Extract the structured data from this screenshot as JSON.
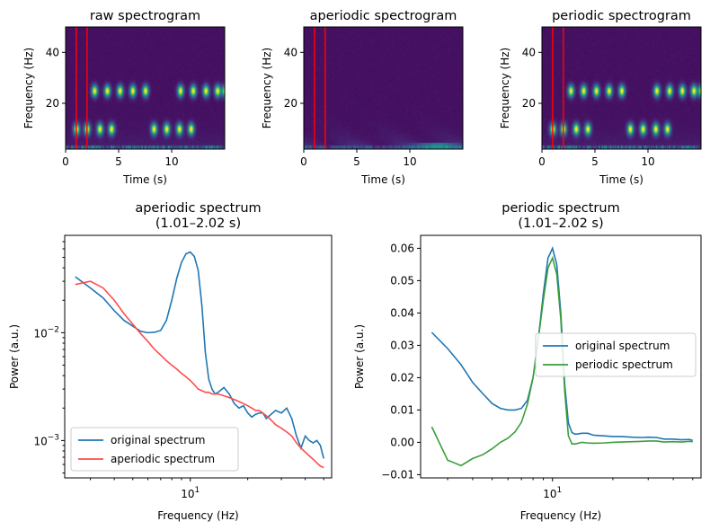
{
  "chart_data": [
    {
      "type": "heatmap",
      "title": "raw spectrogram",
      "xlabel": "Time (s)",
      "ylabel": "Frequency (Hz)",
      "xlim": [
        0,
        15
      ],
      "ylim": [
        2,
        50
      ],
      "xticks": [
        0,
        5,
        10
      ],
      "yticks": [
        20,
        40
      ],
      "colormap": "viridis",
      "vlines": [
        1.01,
        2.02
      ],
      "vline_color": "#ff0000",
      "blobs": [
        {
          "t": 1.0,
          "f": 10
        },
        {
          "t": 2.0,
          "f": 10
        },
        {
          "t": 3.2,
          "f": 10
        },
        {
          "t": 4.3,
          "f": 10
        },
        {
          "t": 2.7,
          "f": 25
        },
        {
          "t": 3.9,
          "f": 25
        },
        {
          "t": 5.1,
          "f": 25
        },
        {
          "t": 6.3,
          "f": 25
        },
        {
          "t": 7.5,
          "f": 25
        },
        {
          "t": 8.3,
          "f": 10
        },
        {
          "t": 9.5,
          "f": 10
        },
        {
          "t": 10.7,
          "f": 10
        },
        {
          "t": 11.8,
          "f": 10
        },
        {
          "t": 10.8,
          "f": 25
        },
        {
          "t": 12.0,
          "f": 25
        },
        {
          "t": 13.2,
          "f": 25
        },
        {
          "t": 14.3,
          "f": 25
        },
        {
          "t": 15.0,
          "f": 25
        }
      ]
    },
    {
      "type": "heatmap",
      "title": "aperiodic spectrogram",
      "xlabel": "Time (s)",
      "ylabel": "Frequency (Hz)",
      "xlim": [
        0,
        15
      ],
      "ylim": [
        2,
        50
      ],
      "xticks": [
        0,
        5,
        10
      ],
      "yticks": [
        20,
        40
      ],
      "colormap": "viridis",
      "vlines": [
        1.01,
        2.02
      ],
      "vline_color": "#ff0000",
      "blobs": []
    },
    {
      "type": "heatmap",
      "title": "periodic spectrogram",
      "xlabel": "Time (s)",
      "ylabel": "Frequency (Hz)",
      "xlim": [
        0,
        15
      ],
      "ylim": [
        2,
        50
      ],
      "xticks": [
        0,
        5,
        10
      ],
      "yticks": [
        20,
        40
      ],
      "colormap": "viridis",
      "vlines": [
        1.01,
        2.02
      ],
      "vline_color": "#ff0000",
      "blobs": [
        {
          "t": 1.0,
          "f": 10
        },
        {
          "t": 2.0,
          "f": 10
        },
        {
          "t": 3.2,
          "f": 10
        },
        {
          "t": 4.3,
          "f": 10
        },
        {
          "t": 2.7,
          "f": 25
        },
        {
          "t": 3.9,
          "f": 25
        },
        {
          "t": 5.1,
          "f": 25
        },
        {
          "t": 6.3,
          "f": 25
        },
        {
          "t": 7.5,
          "f": 25
        },
        {
          "t": 8.3,
          "f": 10
        },
        {
          "t": 9.5,
          "f": 10
        },
        {
          "t": 10.7,
          "f": 10
        },
        {
          "t": 11.8,
          "f": 10
        },
        {
          "t": 10.8,
          "f": 25
        },
        {
          "t": 12.0,
          "f": 25
        },
        {
          "t": 13.2,
          "f": 25
        },
        {
          "t": 14.3,
          "f": 25
        },
        {
          "t": 15.0,
          "f": 25
        }
      ]
    },
    {
      "type": "line",
      "title": "aperiodic spectrum\n(1.01–2.02 s)",
      "xlabel": "Frequency (Hz)",
      "ylabel": "Power (a.u.)",
      "xscale": "log",
      "yscale": "log",
      "xlim": [
        2.2,
        55
      ],
      "ylim": [
        0.00045,
        0.08
      ],
      "xticks": [
        {
          "value": 10,
          "label": "10^1"
        }
      ],
      "yticks": [
        {
          "value": 0.001,
          "label": "10^-3"
        },
        {
          "value": 0.01,
          "label": "10^-2"
        }
      ],
      "legend": "lower-left",
      "series": [
        {
          "name": "original spectrum",
          "color": "#1f77b4",
          "x": [
            2.5,
            3.0,
            3.5,
            4.0,
            4.5,
            5.0,
            5.5,
            6.0,
            6.5,
            7.0,
            7.5,
            8.0,
            8.5,
            9.0,
            9.5,
            10.0,
            10.5,
            11.0,
            11.5,
            12.0,
            12.5,
            13.0,
            13.5,
            14.0,
            15.0,
            16.0,
            17.0,
            18.0,
            19.0,
            20.0,
            21.0,
            22.0,
            23.0,
            24.0,
            25.0,
            26.0,
            27.0,
            28.0,
            30.0,
            32.0,
            34.0,
            36.0,
            38.0,
            40.0,
            42.0,
            44.0,
            46.0,
            48.0,
            50.0
          ],
          "y": [
            0.033,
            0.026,
            0.021,
            0.016,
            0.013,
            0.0115,
            0.0103,
            0.01,
            0.0101,
            0.0105,
            0.013,
            0.02,
            0.032,
            0.045,
            0.054,
            0.056,
            0.051,
            0.038,
            0.018,
            0.0065,
            0.0037,
            0.003,
            0.0027,
            0.0028,
            0.0031,
            0.0027,
            0.0022,
            0.002,
            0.0021,
            0.0018,
            0.00165,
            0.00175,
            0.0018,
            0.0018,
            0.0016,
            0.0017,
            0.0018,
            0.0019,
            0.0018,
            0.002,
            0.0016,
            0.0011,
            0.00085,
            0.0011,
            0.001,
            0.00095,
            0.001,
            0.0009,
            0.00068
          ]
        },
        {
          "name": "aperiodic spectrum",
          "color": "#ff4c4c",
          "x": [
            2.5,
            3.0,
            3.5,
            4.0,
            4.5,
            5.0,
            5.5,
            6.0,
            6.5,
            7.0,
            7.5,
            8.0,
            8.5,
            9.0,
            9.5,
            10.0,
            10.5,
            11.0,
            11.5,
            12.0,
            12.5,
            13.0,
            13.5,
            14.0,
            15.0,
            16.0,
            17.0,
            18.0,
            19.0,
            20.0,
            21.0,
            22.0,
            23.0,
            24.0,
            25.0,
            26.0,
            27.0,
            28.0,
            30.0,
            32.0,
            34.0,
            36.0,
            38.0,
            40.0,
            42.0,
            44.0,
            46.0,
            48.0,
            50.0
          ],
          "y": [
            0.028,
            0.03,
            0.026,
            0.02,
            0.015,
            0.012,
            0.0098,
            0.0083,
            0.007,
            0.0062,
            0.0055,
            0.005,
            0.0046,
            0.0042,
            0.0039,
            0.0036,
            0.0033,
            0.003,
            0.0029,
            0.0028,
            0.0028,
            0.0027,
            0.0027,
            0.0027,
            0.0026,
            0.0025,
            0.0024,
            0.0023,
            0.0022,
            0.0021,
            0.002,
            0.0019,
            0.0019,
            0.0018,
            0.0017,
            0.0016,
            0.0015,
            0.0014,
            0.0013,
            0.0012,
            0.0011,
            0.00095,
            0.00085,
            0.00078,
            0.00072,
            0.00067,
            0.00062,
            0.00058,
            0.00056
          ]
        }
      ]
    },
    {
      "type": "line",
      "title": "periodic spectrum\n(1.01–2.02 s)",
      "xlabel": "Frequency (Hz)",
      "ylabel": "Power (a.u.)",
      "xscale": "log",
      "yscale": "linear",
      "xlim": [
        2.2,
        55
      ],
      "ylim": [
        -0.011,
        0.064
      ],
      "xticks": [
        {
          "value": 10,
          "label": "10^1"
        }
      ],
      "yticks": [
        {
          "value": -0.01,
          "label": "−0.01"
        },
        {
          "value": 0.0,
          "label": "0.00"
        },
        {
          "value": 0.01,
          "label": "0.01"
        },
        {
          "value": 0.02,
          "label": "0.02"
        },
        {
          "value": 0.03,
          "label": "0.03"
        },
        {
          "value": 0.04,
          "label": "0.04"
        },
        {
          "value": 0.05,
          "label": "0.05"
        },
        {
          "value": 0.06,
          "label": "0.06"
        }
      ],
      "legend": "center-right",
      "series": [
        {
          "name": "original spectrum",
          "color": "#1f77b4",
          "x": [
            2.5,
            3.0,
            3.5,
            4.0,
            4.5,
            5.0,
            5.5,
            6.0,
            6.5,
            7.0,
            7.5,
            8.0,
            8.5,
            9.0,
            9.5,
            10.0,
            10.5,
            11.0,
            11.5,
            12.0,
            12.5,
            13.0,
            14.0,
            15.0,
            16.0,
            18.0,
            20.0,
            22.0,
            25.0,
            28.0,
            30.0,
            33.0,
            36.0,
            40.0,
            44.0,
            48.0,
            50.0
          ],
          "y": [
            0.034,
            0.029,
            0.024,
            0.0185,
            0.015,
            0.012,
            0.0105,
            0.01,
            0.01,
            0.0105,
            0.013,
            0.02,
            0.032,
            0.046,
            0.057,
            0.06,
            0.055,
            0.04,
            0.018,
            0.006,
            0.003,
            0.0025,
            0.0028,
            0.0028,
            0.0022,
            0.002,
            0.0018,
            0.0018,
            0.0016,
            0.0015,
            0.0016,
            0.0015,
            0.001,
            0.001,
            0.0008,
            0.0009,
            0.0006
          ]
        },
        {
          "name": "periodic spectrum",
          "color": "#3a9e3a",
          "x": [
            2.5,
            3.0,
            3.5,
            4.0,
            4.5,
            5.0,
            5.5,
            6.0,
            6.5,
            7.0,
            7.5,
            8.0,
            8.5,
            9.0,
            9.5,
            10.0,
            10.5,
            11.0,
            11.5,
            12.0,
            12.5,
            13.0,
            14.0,
            15.0,
            16.0,
            18.0,
            20.0,
            22.0,
            25.0,
            28.0,
            30.0,
            33.0,
            36.0,
            40.0,
            44.0,
            48.0,
            50.0
          ],
          "y": [
            0.0048,
            -0.0055,
            -0.0072,
            -0.005,
            -0.0038,
            -0.002,
            0.0,
            0.0013,
            0.0032,
            0.0062,
            0.0118,
            0.02,
            0.032,
            0.044,
            0.054,
            0.057,
            0.052,
            0.038,
            0.016,
            0.002,
            -0.0005,
            -0.0005,
            0.0,
            -0.0002,
            -0.0003,
            -0.0002,
            0.0,
            0.0001,
            0.0002,
            0.0003,
            0.0004,
            0.0004,
            0.0001,
            0.0002,
            0.0001,
            0.0003,
            0.0002
          ]
        }
      ]
    }
  ]
}
